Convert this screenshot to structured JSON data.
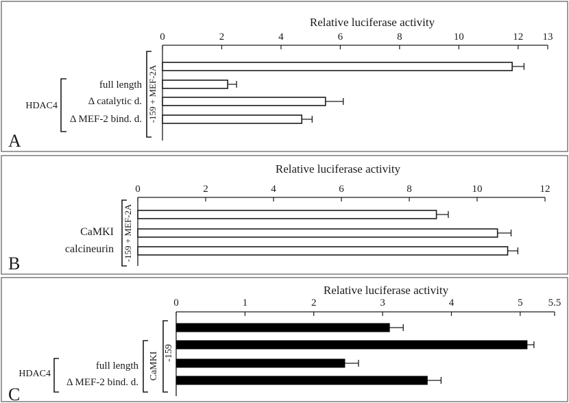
{
  "chart_data": [
    {
      "panel": "A",
      "type": "bar",
      "orientation": "horizontal",
      "bar_style": "open",
      "xlabel": "Relative luciferase activity",
      "xlim": [
        0,
        13
      ],
      "x_ticks": [
        0,
        2,
        4,
        6,
        8,
        10,
        12,
        13
      ],
      "x_tick_labels": [
        "0",
        "2",
        "4",
        "6",
        "8",
        "10",
        "12",
        "13"
      ],
      "grid": false,
      "groups": [
        {
          "label": "-159 + MEF-2A",
          "rows": [
            0,
            1,
            2,
            3
          ]
        },
        {
          "label": "HDAC4",
          "rows": [
            1,
            2,
            3
          ]
        }
      ],
      "rows": [
        {
          "label": "",
          "value": 11.8,
          "error": 0.4
        },
        {
          "label": "full length",
          "value": 2.2,
          "error": 0.3
        },
        {
          "label": "Δ catalytic d.",
          "value": 5.5,
          "error": 0.6
        },
        {
          "label": "Δ MEF-2 bind. d.",
          "value": 4.7,
          "error": 0.35
        }
      ]
    },
    {
      "panel": "B",
      "type": "bar",
      "orientation": "horizontal",
      "bar_style": "open",
      "xlabel": "Relative luciferase activity",
      "xlim": [
        0,
        12
      ],
      "x_ticks": [
        0,
        2,
        4,
        6,
        8,
        10,
        12
      ],
      "x_tick_labels": [
        "0",
        "2",
        "4",
        "6",
        "8",
        "10",
        "12"
      ],
      "grid": false,
      "groups": [
        {
          "label": "-159 + MEF-2A",
          "rows": [
            0,
            1,
            2
          ]
        }
      ],
      "rows": [
        {
          "label": "",
          "value": 8.8,
          "error": 0.35
        },
        {
          "label": "CaMKI",
          "value": 10.6,
          "error": 0.4
        },
        {
          "label": "calcineurin",
          "value": 10.9,
          "error": 0.3
        }
      ]
    },
    {
      "panel": "C",
      "type": "bar",
      "orientation": "horizontal",
      "bar_style": "solid",
      "xlabel": "Relative luciferase activity",
      "xlim": [
        0,
        5.5
      ],
      "x_ticks": [
        0,
        1,
        2,
        3,
        4,
        5,
        5.5
      ],
      "x_tick_labels": [
        "0",
        "1",
        "2",
        "3",
        "4",
        "5",
        "5.5"
      ],
      "grid": false,
      "groups": [
        {
          "label": "-159",
          "rows": [
            0,
            1,
            2,
            3
          ]
        },
        {
          "label": "CaMKI",
          "rows": [
            1,
            2,
            3
          ]
        },
        {
          "label": "HDAC4",
          "rows": [
            2,
            3
          ]
        }
      ],
      "rows": [
        {
          "label": "",
          "value": 3.1,
          "error": 0.2
        },
        {
          "label": "",
          "value": 5.1,
          "error": 0.1
        },
        {
          "label": "full length",
          "value": 2.45,
          "error": 0.2
        },
        {
          "label": "Δ MEF-2 bind. d.",
          "value": 3.65,
          "error": 0.2
        }
      ]
    }
  ]
}
